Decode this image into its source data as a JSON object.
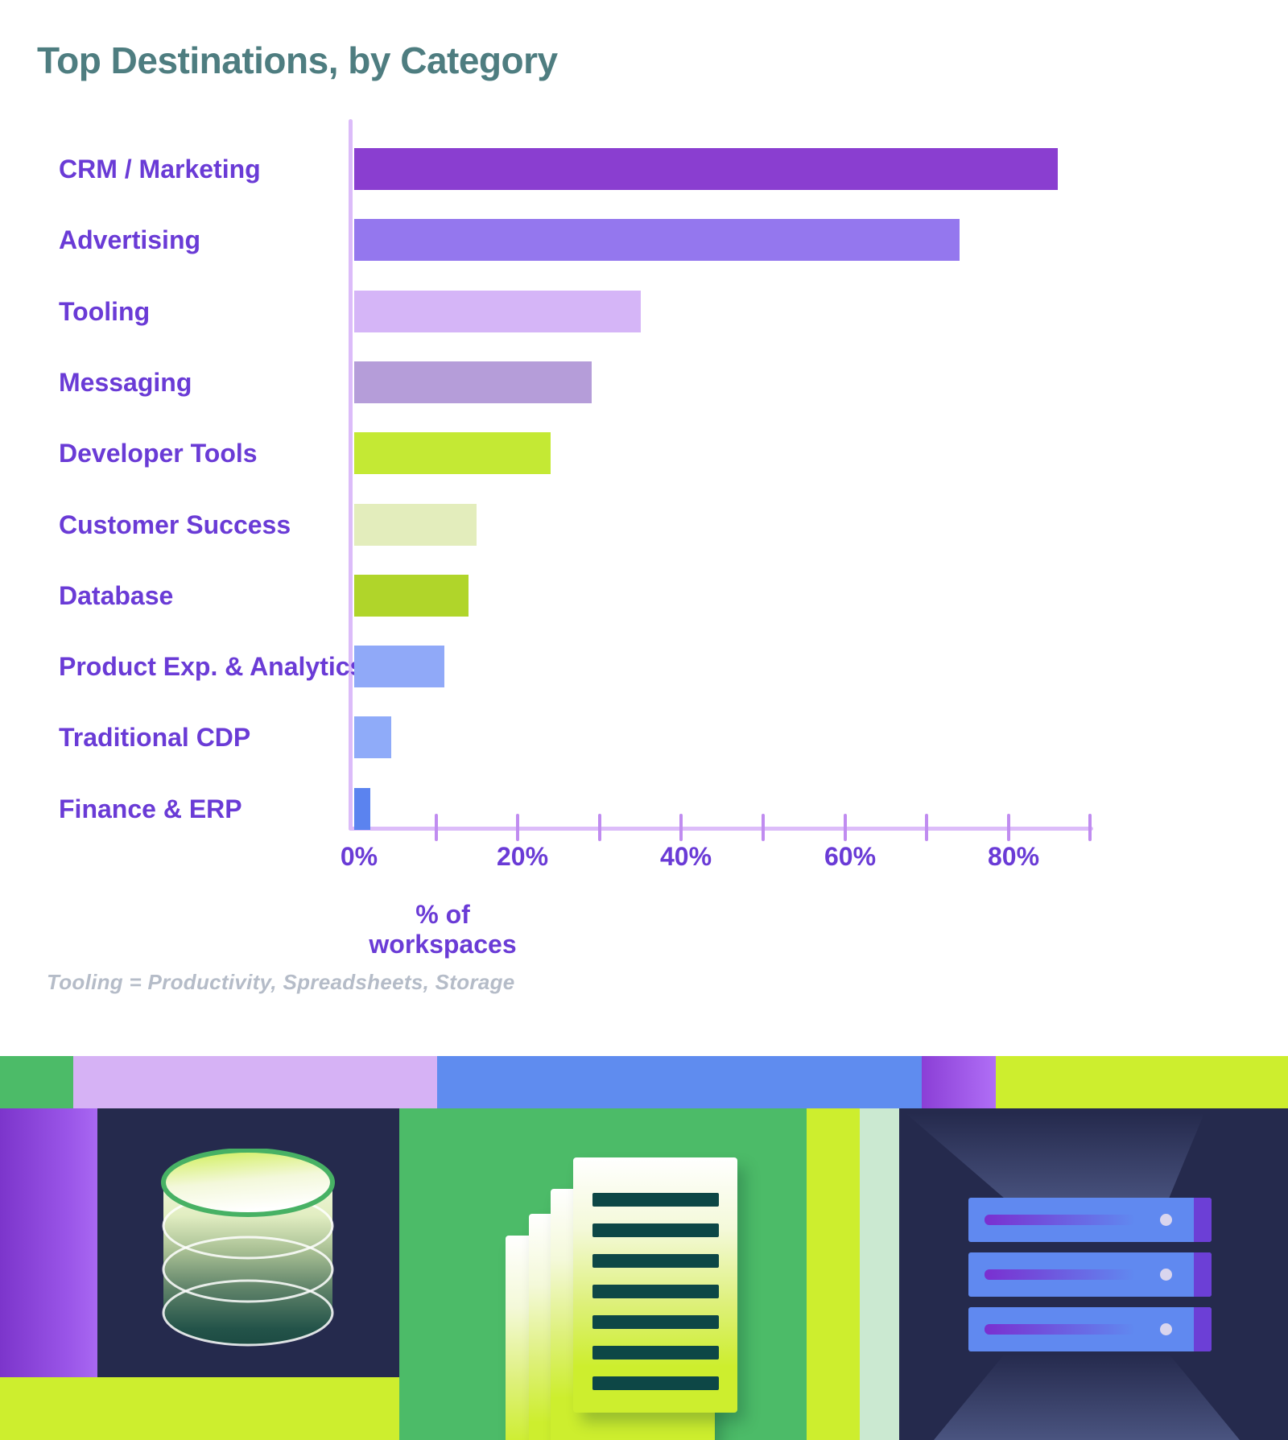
{
  "title": "Top Destinations, by Category",
  "chart_data": {
    "type": "bar",
    "orientation": "horizontal",
    "title": "Top Destinations, by Category",
    "xlabel": "% of workspaces",
    "categories": [
      "CRM / Marketing",
      "Advertising",
      "Tooling",
      "Messaging",
      "Developer Tools",
      "Customer Success",
      "Database",
      "Product Exp. & Analytics",
      "Traditional CDP",
      "Finance & ERP"
    ],
    "values": [
      86,
      74,
      35,
      29,
      24,
      15,
      14,
      11,
      4.5,
      2
    ],
    "bar_colors": [
      "#8a3ed0",
      "#9477ee",
      "#d5b5f7",
      "#b59dd9",
      "#c4e934",
      "#e3edbc",
      "#b0d52a",
      "#90a9f8",
      "#8fabf9",
      "#5b83ef"
    ],
    "xlim": [
      0,
      90
    ],
    "x_minor_tick_step": 10,
    "x_tick_label_values": [
      0,
      20,
      40,
      60,
      80
    ],
    "x_tick_labels": [
      "0%",
      "20%",
      "40%",
      "60%",
      "80%"
    ],
    "grid": false,
    "legend": null
  },
  "footnote": "Tooling = Productivity, Spreadsheets, Storage",
  "theme": {
    "title_color": "#4e7d80",
    "label_color": "#6a3bd6",
    "axis_color": "#dcbcf9",
    "tick_color": "#c08cf0",
    "footnote_color": "#b5bcc8",
    "background": "#ffffff"
  },
  "illustration": {
    "strip_segments": [
      {
        "name": "strip-green",
        "color": "#4cbb68"
      },
      {
        "name": "strip-lilac",
        "color": "#d6b2f5"
      },
      {
        "name": "strip-blue",
        "color": "#5f8cef"
      },
      {
        "name": "strip-purple-gradient",
        "color_start": "#8b3fd6",
        "color_end": "#b06ef6"
      },
      {
        "name": "strip-lime",
        "color": "#cdee2e"
      }
    ],
    "panel_colors": {
      "navy": "#252a4d",
      "green": "#4cbb68",
      "lime": "#cdee2e",
      "mint": "#cbe9d1",
      "doc_line": "#0d4746",
      "server_blue": "#6089f0",
      "server_cap_purple": "#6c3fd6"
    },
    "panels": [
      {
        "icon": "database-cylinder-icon"
      },
      {
        "icon": "stacked-documents-icon"
      },
      {
        "icon": "server-stack-icon"
      }
    ]
  }
}
